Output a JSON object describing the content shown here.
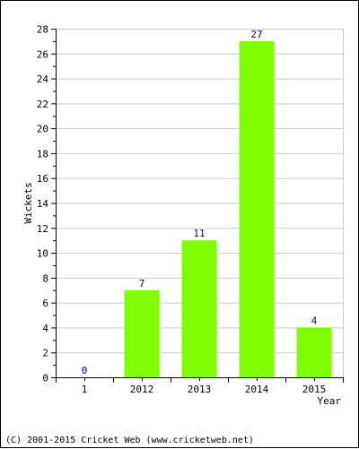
{
  "chart_data": {
    "type": "bar",
    "categories": [
      "1",
      "2012",
      "2013",
      "2014",
      "2015"
    ],
    "values": [
      0,
      7,
      11,
      27,
      4
    ],
    "data_labels": [
      "0",
      "7",
      "11",
      "27",
      "4"
    ],
    "title": "",
    "xlabel": "Year",
    "ylabel": "Wickets",
    "ylim": [
      0,
      28
    ],
    "yticks": [
      0,
      2,
      4,
      6,
      8,
      10,
      12,
      14,
      16,
      18,
      20,
      22,
      24,
      26,
      28
    ],
    "grid": true,
    "bar_color": "#80ff00",
    "label_color": "#000080",
    "grid_color": "#c8c8c8"
  },
  "footer": {
    "text": "(C) 2001-2015 Cricket Web (www.cricketweb.net)"
  }
}
